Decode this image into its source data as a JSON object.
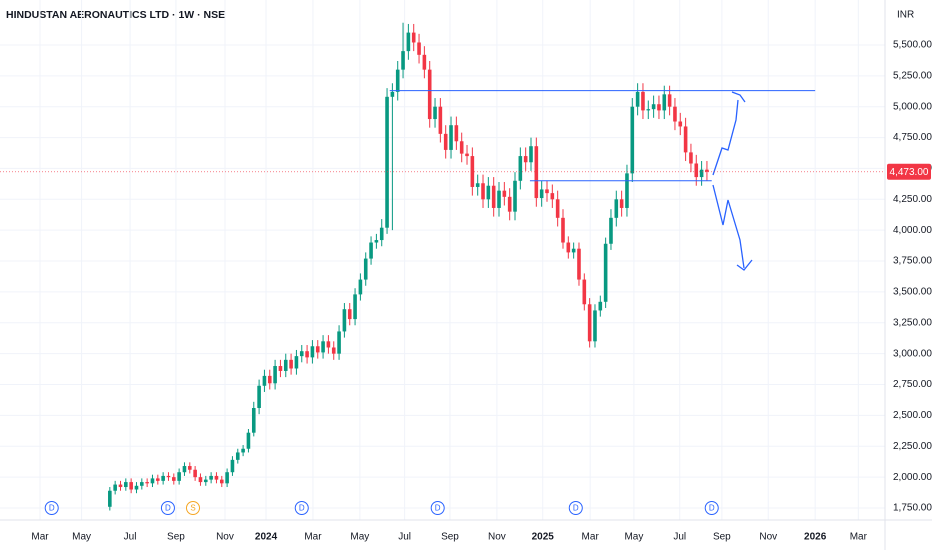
{
  "chart_data": {
    "type": "candlestick",
    "title": "HINDUSTAN AERONAUTICS LTD · 1W · NSE",
    "currency": "INR",
    "up_color": "#089981",
    "down_color": "#f23645",
    "series": [
      {
        "open": [
          1760,
          1890,
          1940,
          1920,
          1960,
          1900,
          1930,
          1960,
          1950,
          1990,
          1970,
          2010,
          2000,
          1970,
          2040,
          2090,
          2060,
          2000,
          1960,
          1980,
          2010,
          1980,
          1950,
          2040,
          2140,
          2200,
          2230,
          2360,
          2560,
          2740,
          2820,
          2760,
          2900,
          2860,
          2950,
          2880,
          2980,
          3020,
          2970,
          3060,
          3010,
          3100,
          3050,
          3000,
          3180,
          3360,
          3280,
          3480,
          3600,
          3770,
          3900,
          3920,
          4020,
          5080,
          5120,
          5300,
          5450,
          5600,
          5520,
          5420,
          5300,
          4900,
          5000,
          4780,
          4650,
          4850,
          4720,
          4620,
          4600,
          4350,
          4380,
          4250,
          4360,
          4180,
          4320,
          4270,
          4150,
          4400,
          4600,
          4550,
          4680,
          4260,
          4330,
          4300,
          4250,
          4100,
          3900,
          3820,
          3850,
          3600,
          3400,
          3100,
          3350,
          3420,
          3890,
          4100,
          4250,
          4180,
          4460,
          5000,
          5120,
          4970,
          4980,
          5020,
          4970,
          5100,
          5000,
          4880,
          4840,
          4630,
          4540,
          4430,
          4490
        ],
        "high": [
          1920,
          1970,
          1970,
          1990,
          1990,
          1960,
          1990,
          1990,
          2020,
          2020,
          2040,
          2040,
          2030,
          2070,
          2120,
          2120,
          2090,
          2030,
          2010,
          2040,
          2040,
          2010,
          2070,
          2170,
          2230,
          2260,
          2390,
          2610,
          2790,
          2870,
          2870,
          2950,
          2950,
          3000,
          3000,
          3030,
          3070,
          3070,
          3110,
          3110,
          3150,
          3150,
          3100,
          3230,
          3410,
          3410,
          3530,
          3650,
          3820,
          3950,
          3970,
          4090,
          5150,
          5190,
          5370,
          5680,
          5670,
          5670,
          5590,
          5490,
          5370,
          5070,
          5070,
          4850,
          4920,
          4920,
          4790,
          4690,
          4670,
          4450,
          4450,
          4430,
          4430,
          4390,
          4390,
          4340,
          4470,
          4670,
          4670,
          4750,
          4750,
          4400,
          4400,
          4370,
          4320,
          4170,
          3950,
          3900,
          3900,
          3650,
          3450,
          3400,
          3470,
          3940,
          4170,
          4320,
          4320,
          4530,
          5070,
          5190,
          5190,
          5050,
          5090,
          5090,
          5170,
          5170,
          5070,
          4950,
          4910,
          4700,
          4610,
          4560,
          4560
        ],
        "low": [
          1730,
          1860,
          1890,
          1890,
          1870,
          1870,
          1900,
          1920,
          1920,
          1940,
          1940,
          1970,
          1940,
          1940,
          2010,
          2030,
          1970,
          1930,
          1930,
          1950,
          1950,
          1920,
          1920,
          2010,
          2110,
          2170,
          2200,
          2330,
          2510,
          2690,
          2710,
          2710,
          2810,
          2810,
          2830,
          2830,
          2930,
          2920,
          2920,
          2960,
          2960,
          3000,
          2950,
          2950,
          3130,
          3230,
          3230,
          3430,
          3550,
          3720,
          3850,
          3870,
          3970,
          4000,
          5050,
          5230,
          5380,
          5450,
          5350,
          5230,
          4830,
          4830,
          4710,
          4580,
          4580,
          4650,
          4550,
          4530,
          4280,
          4280,
          4180,
          4180,
          4110,
          4110,
          4200,
          4080,
          4080,
          4330,
          4480,
          4480,
          4190,
          4190,
          4230,
          4180,
          4030,
          3850,
          3770,
          3770,
          3550,
          3350,
          3050,
          3050,
          3300,
          3370,
          3840,
          4030,
          4110,
          4110,
          4390,
          4930,
          4900,
          4900,
          4910,
          4900,
          4900,
          4930,
          4810,
          4770,
          4560,
          4470,
          4360,
          4360,
          4400
        ],
        "close": [
          1890,
          1940,
          1920,
          1960,
          1900,
          1930,
          1960,
          1950,
          1990,
          1970,
          2010,
          2000,
          1970,
          2040,
          2090,
          2060,
          2000,
          1960,
          1980,
          2010,
          1980,
          1950,
          2040,
          2140,
          2200,
          2230,
          2360,
          2560,
          2740,
          2820,
          2760,
          2900,
          2860,
          2950,
          2880,
          2980,
          3020,
          2970,
          3060,
          3010,
          3100,
          3050,
          3000,
          3180,
          3360,
          3280,
          3480,
          3600,
          3770,
          3900,
          3920,
          4020,
          5080,
          5120,
          5300,
          5450,
          5600,
          5520,
          5420,
          5300,
          4900,
          5000,
          4780,
          4650,
          4850,
          4720,
          4620,
          4600,
          4350,
          4380,
          4250,
          4360,
          4180,
          4320,
          4270,
          4150,
          4400,
          4600,
          4550,
          4680,
          4260,
          4330,
          4300,
          4250,
          4100,
          3900,
          3820,
          3850,
          3600,
          3400,
          3100,
          3350,
          3420,
          3890,
          4100,
          4250,
          4180,
          4460,
          5000,
          5120,
          4970,
          4980,
          5020,
          4970,
          5100,
          5000,
          4880,
          4840,
          4630,
          4540,
          4430,
          4490,
          4473
        ]
      }
    ],
    "ylim": [
      1653,
      5864
    ],
    "yticks": [
      {
        "value": 1750,
        "label": "1,750.00"
      },
      {
        "value": 2000,
        "label": "2,000.00"
      },
      {
        "value": 2250,
        "label": "2,250.00"
      },
      {
        "value": 2500,
        "label": "2,500.00"
      },
      {
        "value": 2750,
        "label": "2,750.00"
      },
      {
        "value": 3000,
        "label": "3,000.00"
      },
      {
        "value": 3250,
        "label": "3,250.00"
      },
      {
        "value": 3500,
        "label": "3,500.00"
      },
      {
        "value": 3750,
        "label": "3,750.00"
      },
      {
        "value": 4000,
        "label": "4,000.00"
      },
      {
        "value": 4250,
        "label": "4,250.00"
      },
      {
        "value": 4500,
        "label": "4,500.00"
      },
      {
        "value": 4750,
        "label": "4,750.00"
      },
      {
        "value": 5000,
        "label": "5,000.00"
      },
      {
        "value": 5250,
        "label": "5,250.00"
      },
      {
        "value": 5500,
        "label": "5,500.00"
      }
    ],
    "xlim": [
      -20.6,
      145.4
    ],
    "xticks": [
      {
        "value": -13.1,
        "label": "Mar"
      },
      {
        "value": -5.3,
        "label": "May"
      },
      {
        "value": 3.8,
        "label": "Jul"
      },
      {
        "value": 12.4,
        "label": "Sep"
      },
      {
        "value": 21.6,
        "label": "Nov"
      },
      {
        "value": 29.3,
        "label": "2024"
      },
      {
        "value": 38.1,
        "label": "Mar"
      },
      {
        "value": 46.9,
        "label": "May"
      },
      {
        "value": 55.3,
        "label": "Jul"
      },
      {
        "value": 63.8,
        "label": "Sep"
      },
      {
        "value": 72.6,
        "label": "Nov"
      },
      {
        "value": 81.2,
        "label": "2025"
      },
      {
        "value": 90.1,
        "label": "Mar"
      },
      {
        "value": 98.3,
        "label": "May"
      },
      {
        "value": 106.9,
        "label": "Jul"
      },
      {
        "value": 114.8,
        "label": "Sep"
      },
      {
        "value": 123.5,
        "label": "Nov"
      },
      {
        "value": 132.3,
        "label": "2026"
      },
      {
        "value": 140.4,
        "label": "Mar"
      }
    ],
    "last_price": {
      "value": 4473,
      "label": "4,473.00"
    },
    "levels": [
      {
        "value": 5130,
        "x": [
          52.5,
          132.3
        ]
      },
      {
        "value": 4400,
        "x": [
          78.8,
          112.9
        ]
      }
    ],
    "events": [
      {
        "label": "D",
        "x": -10.9
      },
      {
        "label": "D",
        "x": 10.9
      },
      {
        "label": "S",
        "x": 15.6
      },
      {
        "label": "D",
        "x": 36.0
      },
      {
        "label": "D",
        "x": 61.5
      },
      {
        "label": "D",
        "x": 87.4
      },
      {
        "label": "D",
        "x": 112.9
      }
    ]
  }
}
